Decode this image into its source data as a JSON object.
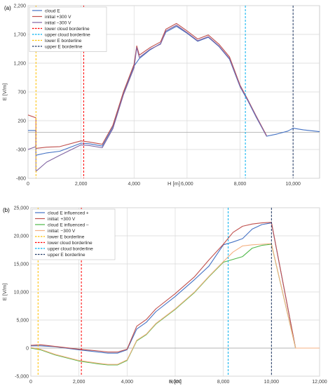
{
  "chart_data": [
    {
      "panel_label": "(a)",
      "type": "line",
      "xlabel": "H [m]",
      "ylabel": "E [V/m]",
      "xlim": [
        0,
        11000
      ],
      "ylim": [
        -800,
        2200
      ],
      "x_ticks": [
        0,
        2000,
        4000,
        6000,
        8000,
        10000
      ],
      "x_tick_labels": [
        "0",
        "2,000",
        "4,000",
        "6,000",
        "8,000",
        "10,000"
      ],
      "y_ticks": [
        -800,
        -300,
        200,
        700,
        1200,
        1700,
        2200
      ],
      "y_tick_labels": [
        "-800",
        "-300",
        "200",
        "700",
        "1,200",
        "1,700",
        "2,200"
      ],
      "grid": true,
      "legend_position": "top-left",
      "series": [
        {
          "name": "cloud E",
          "color": "#4472C4",
          "style": "solid",
          "points": [
            [
              0,
              30
            ],
            [
              300,
              30
            ],
            [
              300,
              -400
            ],
            [
              700,
              -360
            ],
            [
              1200,
              -330
            ],
            [
              2000,
              -190
            ],
            [
              2300,
              -200
            ],
            [
              2800,
              -240
            ],
            [
              3200,
              90
            ],
            [
              3600,
              680
            ],
            [
              4000,
              1150
            ],
            [
              4200,
              1280
            ],
            [
              4600,
              1430
            ],
            [
              5000,
              1540
            ],
            [
              5200,
              1740
            ],
            [
              5600,
              1840
            ],
            [
              6000,
              1720
            ],
            [
              6400,
              1580
            ],
            [
              6800,
              1650
            ],
            [
              7200,
              1490
            ],
            [
              7600,
              1270
            ],
            [
              8000,
              790
            ],
            [
              8300,
              540
            ],
            [
              8600,
              270
            ],
            [
              9000,
              -70
            ],
            [
              9400,
              -30
            ],
            [
              9800,
              20
            ],
            [
              10000,
              70
            ],
            [
              10400,
              40
            ],
            [
              11000,
              10
            ]
          ]
        },
        {
          "name": "initial +300 V",
          "color": "#C0504D",
          "style": "solid",
          "points": [
            [
              0,
              300
            ],
            [
              300,
              250
            ],
            [
              300,
              -280
            ],
            [
              700,
              -260
            ],
            [
              1200,
              -250
            ],
            [
              2000,
              -150
            ],
            [
              2300,
              -170
            ],
            [
              2800,
              -210
            ],
            [
              3200,
              120
            ],
            [
              3600,
              700
            ],
            [
              4000,
              1180
            ],
            [
              4100,
              1500
            ],
            [
              4200,
              1340
            ],
            [
              4600,
              1470
            ],
            [
              5000,
              1570
            ],
            [
              5200,
              1790
            ],
            [
              5600,
              1890
            ],
            [
              6000,
              1760
            ],
            [
              6400,
              1620
            ],
            [
              6800,
              1690
            ],
            [
              7200,
              1530
            ],
            [
              7600,
              1310
            ],
            [
              8000,
              820
            ],
            [
              8300,
              560
            ],
            [
              8600,
              290
            ],
            [
              9000,
              -60
            ]
          ]
        },
        {
          "name": "initial −300 V",
          "color": "#8064A2",
          "style": "solid",
          "points": [
            [
              0,
              -300
            ],
            [
              300,
              -250
            ],
            [
              300,
              -680
            ],
            [
              700,
              -520
            ],
            [
              1200,
              -400
            ],
            [
              2000,
              -220
            ],
            [
              2300,
              -230
            ],
            [
              2800,
              -270
            ],
            [
              3200,
              60
            ],
            [
              3600,
              650
            ],
            [
              4000,
              1120
            ],
            [
              4100,
              1470
            ],
            [
              4200,
              1300
            ],
            [
              4600,
              1440
            ],
            [
              5000,
              1530
            ],
            [
              5200,
              1760
            ],
            [
              5600,
              1860
            ],
            [
              6000,
              1730
            ],
            [
              6400,
              1590
            ],
            [
              6800,
              1660
            ],
            [
              7200,
              1500
            ],
            [
              7600,
              1280
            ],
            [
              8000,
              800
            ],
            [
              8300,
              550
            ],
            [
              8600,
              280
            ],
            [
              9000,
              -70
            ]
          ]
        },
        {
          "name": "lower cloud borderline",
          "color": "#FF0000",
          "style": "dashed",
          "x": 2100
        },
        {
          "name": "upper cloud borderline",
          "color": "#00B0F0",
          "style": "dashed",
          "x": 8200
        },
        {
          "name": "lower E borderline",
          "color": "#FFC000",
          "style": "dashed",
          "x": 300
        },
        {
          "name": "upper E borderline",
          "color": "#1F3864",
          "style": "dashed",
          "x": 10000
        }
      ]
    },
    {
      "panel_label": "(b)",
      "type": "line",
      "xlabel": "H [m]",
      "ylabel": "E [V/m]",
      "xlim": [
        0,
        12000
      ],
      "ylim": [
        -5000,
        25000
      ],
      "x_ticks": [
        0,
        2000,
        4000,
        6000,
        8000,
        10000,
        12000
      ],
      "x_tick_labels": [
        "0",
        "2,000",
        "4,000",
        "6,000",
        "8,000",
        "10,000",
        "12,000"
      ],
      "y_ticks": [
        -5000,
        0,
        5000,
        10000,
        15000,
        20000,
        25000
      ],
      "y_tick_labels": [
        "-5,000",
        "0",
        "5,000",
        "10,000",
        "15,000",
        "20,000",
        "25,000"
      ],
      "grid": true,
      "legend_position": "top-left",
      "series": [
        {
          "name": "cloud E influenced +",
          "color": "#4472C4",
          "style": "solid",
          "points": [
            [
              0,
              400
            ],
            [
              400,
              400
            ],
            [
              1000,
              250
            ],
            [
              2000,
              -300
            ],
            [
              2800,
              -700
            ],
            [
              3200,
              -900
            ],
            [
              3600,
              -900
            ],
            [
              4000,
              -300
            ],
            [
              4400,
              3400
            ],
            [
              4800,
              4600
            ],
            [
              5200,
              6500
            ],
            [
              6000,
              9200
            ],
            [
              6800,
              12200
            ],
            [
              7400,
              14600
            ],
            [
              8000,
              18400
            ],
            [
              8400,
              18900
            ],
            [
              8800,
              19500
            ],
            [
              9200,
              21200
            ],
            [
              9600,
              22000
            ],
            [
              10000,
              22300
            ],
            [
              11000,
              0
            ],
            [
              12000,
              0
            ]
          ]
        },
        {
          "name": "initial: +300 V",
          "color": "#C0504D",
          "style": "solid",
          "points": [
            [
              0,
              500
            ],
            [
              400,
              600
            ],
            [
              1000,
              300
            ],
            [
              2000,
              -200
            ],
            [
              2800,
              -500
            ],
            [
              3200,
              -700
            ],
            [
              3600,
              -700
            ],
            [
              4000,
              -200
            ],
            [
              4400,
              3900
            ],
            [
              4800,
              5100
            ],
            [
              5200,
              7000
            ],
            [
              6000,
              9700
            ],
            [
              6800,
              12700
            ],
            [
              7400,
              15700
            ],
            [
              8000,
              18500
            ],
            [
              8400,
              20600
            ],
            [
              8800,
              21700
            ],
            [
              9200,
              22100
            ],
            [
              9600,
              22300
            ],
            [
              10000,
              22400
            ],
            [
              11000,
              0
            ],
            [
              12000,
              0
            ]
          ]
        },
        {
          "name": "cloud E influenced –",
          "color": "#4EB848",
          "style": "solid",
          "points": [
            [
              0,
              0
            ],
            [
              400,
              -300
            ],
            [
              1000,
              -1200
            ],
            [
              2000,
              -2300
            ],
            [
              2800,
              -2800
            ],
            [
              3200,
              -3000
            ],
            [
              3600,
              -3000
            ],
            [
              4000,
              -2200
            ],
            [
              4400,
              1300
            ],
            [
              4800,
              2400
            ],
            [
              5200,
              4300
            ],
            [
              6000,
              6900
            ],
            [
              6800,
              9900
            ],
            [
              7400,
              12700
            ],
            [
              8000,
              15300
            ],
            [
              8400,
              15800
            ],
            [
              8800,
              16300
            ],
            [
              9200,
              17800
            ],
            [
              9600,
              18300
            ],
            [
              10000,
              18500
            ],
            [
              11000,
              0
            ],
            [
              12000,
              0
            ]
          ]
        },
        {
          "name": "initial: −300 V",
          "color": "#F4B183",
          "style": "solid",
          "points": [
            [
              0,
              100
            ],
            [
              400,
              -200
            ],
            [
              1000,
              -1100
            ],
            [
              2000,
              -2200
            ],
            [
              2800,
              -2700
            ],
            [
              3200,
              -2900
            ],
            [
              3600,
              -2900
            ],
            [
              4000,
              -2100
            ],
            [
              4400,
              1400
            ],
            [
              4800,
              2500
            ],
            [
              5200,
              4400
            ],
            [
              6000,
              7000
            ],
            [
              6800,
              10000
            ],
            [
              7400,
              12800
            ],
            [
              8000,
              15400
            ],
            [
              8400,
              17100
            ],
            [
              8800,
              18200
            ],
            [
              9200,
              18400
            ],
            [
              9600,
              18500
            ],
            [
              10000,
              18600
            ],
            [
              11000,
              0
            ],
            [
              12000,
              0
            ]
          ]
        },
        {
          "name": "lower E borderline",
          "color": "#FFC000",
          "style": "dashed",
          "x": 300
        },
        {
          "name": "lower cloud borderline",
          "color": "#FF0000",
          "style": "dashed",
          "x": 2100
        },
        {
          "name": "upper cloud borderline",
          "color": "#00B0F0",
          "style": "dashed",
          "x": 8200
        },
        {
          "name": "upper E borderline",
          "color": "#1F3864",
          "style": "dashed",
          "x": 10000
        }
      ]
    }
  ]
}
